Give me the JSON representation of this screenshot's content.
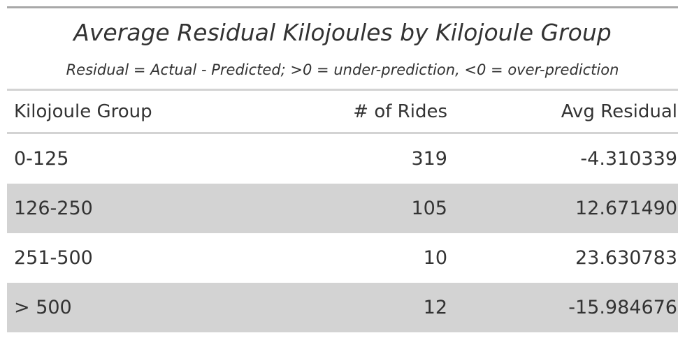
{
  "chart_data": {
    "type": "table",
    "title": "Average Residual Kilojoules by Kilojoule Group",
    "subtitle": "Residual = Actual - Predicted; >0 = under-prediction, <0 = over-prediction",
    "columns": [
      "Kilojoule Group",
      "# of Rides",
      "Avg Residual"
    ],
    "rows": [
      {
        "group": "0-125",
        "rides": "319",
        "residual": "-4.310339"
      },
      {
        "group": "126-250",
        "rides": "105",
        "residual": "12.671490"
      },
      {
        "group": "251-500",
        "rides": "10",
        "residual": "23.630783"
      },
      {
        "group": "> 500",
        "rides": "12",
        "residual": "-15.984676"
      }
    ],
    "striped_rows": true,
    "stripe_color": "#d3d3d3"
  }
}
